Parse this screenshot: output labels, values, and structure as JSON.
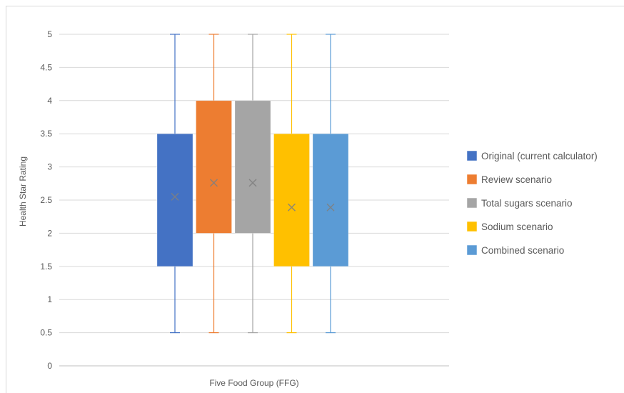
{
  "chart_data": {
    "type": "box",
    "title": "",
    "xlabel": "Five Food Group (FFG)",
    "ylabel": "Health Star Rating",
    "ylim": [
      0,
      5
    ],
    "yticks": [
      "0",
      "0.5",
      "1",
      "1.5",
      "2",
      "2.5",
      "3",
      "3.5",
      "4",
      "4.5",
      "5"
    ],
    "grid": true,
    "legend_position": "right",
    "series": [
      {
        "name": "Original (current calculator)",
        "color": "#4472c4",
        "min": 0.5,
        "q1": 1.5,
        "q3": 3.5,
        "max": 5,
        "mean": 2.55
      },
      {
        "name": "Review scenario",
        "color": "#ed7d31",
        "min": 0.5,
        "q1": 2.0,
        "q3": 4.0,
        "max": 5,
        "mean": 2.76
      },
      {
        "name": "Total sugars scenario",
        "color": "#a5a5a5",
        "min": 0.5,
        "q1": 2.0,
        "q3": 4.0,
        "max": 5,
        "mean": 2.76
      },
      {
        "name": "Sodium scenario",
        "color": "#ffc000",
        "min": 0.5,
        "q1": 1.5,
        "q3": 3.5,
        "max": 5,
        "mean": 2.39
      },
      {
        "name": "Combined scenario",
        "color": "#5b9bd5",
        "min": 0.5,
        "q1": 1.5,
        "q3": 3.5,
        "max": 5,
        "mean": 2.39
      }
    ]
  }
}
